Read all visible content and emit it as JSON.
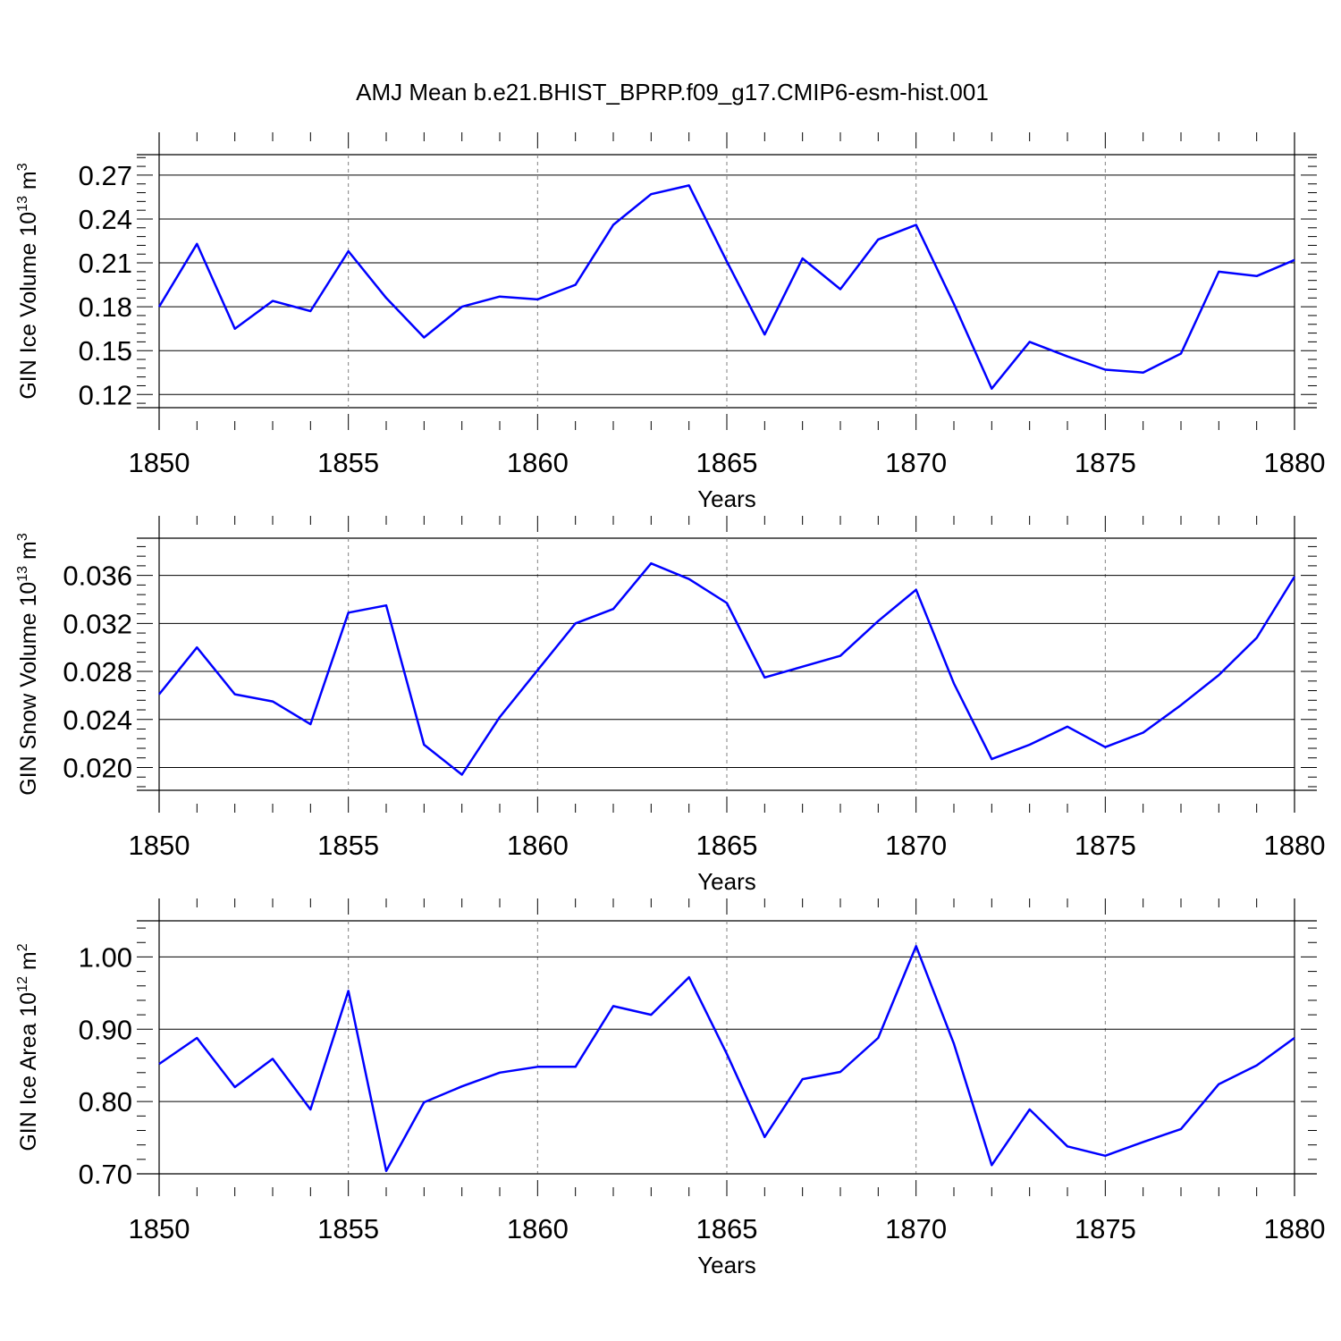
{
  "title": "AMJ Mean b.e21.BHIST_BPRP.f09_g17.CMIP6-esm-hist.001",
  "colors": {
    "series": "#0000ff",
    "axis": "#000000",
    "grid": "#808080"
  },
  "chart_data": [
    {
      "type": "line",
      "xlabel": "Years",
      "ylabel": "GIN Ice Volume 10",
      "ylabel_exp": "13",
      "ylabel_unit": "m",
      "ylabel_unit_exp": "3",
      "xlim": [
        1850,
        1880
      ],
      "ylim": [
        0.111,
        0.284
      ],
      "xticks": [
        "1850",
        "1855",
        "1860",
        "1865",
        "1870",
        "1875",
        "1880"
      ],
      "yticks": [
        "0.12",
        "0.15",
        "0.18",
        "0.21",
        "0.24",
        "0.27"
      ],
      "grid": "vertical dashed at major x ticks",
      "x": [
        1850,
        1851,
        1852,
        1853,
        1854,
        1855,
        1856,
        1857,
        1858,
        1859,
        1860,
        1861,
        1862,
        1863,
        1864,
        1865,
        1866,
        1867,
        1868,
        1869,
        1870,
        1871,
        1872,
        1873,
        1874,
        1875,
        1876,
        1877,
        1878,
        1879,
        1880
      ],
      "y": [
        0.18,
        0.223,
        0.165,
        0.184,
        0.177,
        0.218,
        0.186,
        0.159,
        0.18,
        0.187,
        0.185,
        0.195,
        0.236,
        0.257,
        0.263,
        0.211,
        0.161,
        0.213,
        0.192,
        0.226,
        0.236,
        0.182,
        0.124,
        0.156,
        0.146,
        0.137,
        0.135,
        0.148,
        0.204,
        0.201,
        0.212
      ]
    },
    {
      "type": "line",
      "xlabel": "Years",
      "ylabel": "GIN Snow Volume 10",
      "ylabel_exp": "13",
      "ylabel_unit": "m",
      "ylabel_unit_exp": "3",
      "xlim": [
        1850,
        1880
      ],
      "ylim": [
        0.0181,
        0.0391
      ],
      "xticks": [
        "1850",
        "1855",
        "1860",
        "1865",
        "1870",
        "1875",
        "1880"
      ],
      "yticks": [
        "0.020",
        "0.024",
        "0.028",
        "0.032",
        "0.036"
      ],
      "grid": "vertical dashed at major x ticks",
      "x": [
        1850,
        1851,
        1852,
        1853,
        1854,
        1855,
        1856,
        1857,
        1858,
        1859,
        1860,
        1861,
        1862,
        1863,
        1864,
        1865,
        1866,
        1867,
        1868,
        1869,
        1870,
        1871,
        1872,
        1873,
        1874,
        1875,
        1876,
        1877,
        1878,
        1879,
        1880
      ],
      "y": [
        0.0261,
        0.03,
        0.0261,
        0.0255,
        0.0236,
        0.0329,
        0.0335,
        0.0219,
        0.0194,
        0.0242,
        0.0281,
        0.032,
        0.0332,
        0.037,
        0.0357,
        0.0337,
        0.0275,
        0.0284,
        0.0293,
        0.0322,
        0.0348,
        0.027,
        0.0207,
        0.0219,
        0.0234,
        0.0217,
        0.0229,
        0.0252,
        0.0277,
        0.0308,
        0.0359
      ]
    },
    {
      "type": "line",
      "xlabel": "Years",
      "ylabel": "GIN Ice Area 10",
      "ylabel_exp": "12",
      "ylabel_unit": "m",
      "ylabel_unit_exp": "2",
      "xlim": [
        1850,
        1880
      ],
      "ylim": [
        0.7,
        1.05
      ],
      "xticks": [
        "1850",
        "1855",
        "1860",
        "1865",
        "1870",
        "1875",
        "1880"
      ],
      "yticks": [
        "0.70",
        "0.80",
        "0.90",
        "1.00"
      ],
      "grid": "vertical dashed at major x ticks",
      "x": [
        1850,
        1851,
        1852,
        1853,
        1854,
        1855,
        1856,
        1857,
        1858,
        1859,
        1860,
        1861,
        1862,
        1863,
        1864,
        1865,
        1866,
        1867,
        1868,
        1869,
        1870,
        1871,
        1872,
        1873,
        1874,
        1875,
        1876,
        1877,
        1878,
        1879,
        1880
      ],
      "y": [
        0.852,
        0.888,
        0.82,
        0.859,
        0.789,
        0.953,
        0.704,
        0.799,
        0.821,
        0.84,
        0.848,
        0.848,
        0.932,
        0.92,
        0.972,
        0.866,
        0.751,
        0.831,
        0.841,
        0.888,
        1.015,
        0.88,
        0.712,
        0.789,
        0.738,
        0.725,
        0.744,
        0.762,
        0.824,
        0.85,
        0.888
      ]
    }
  ]
}
